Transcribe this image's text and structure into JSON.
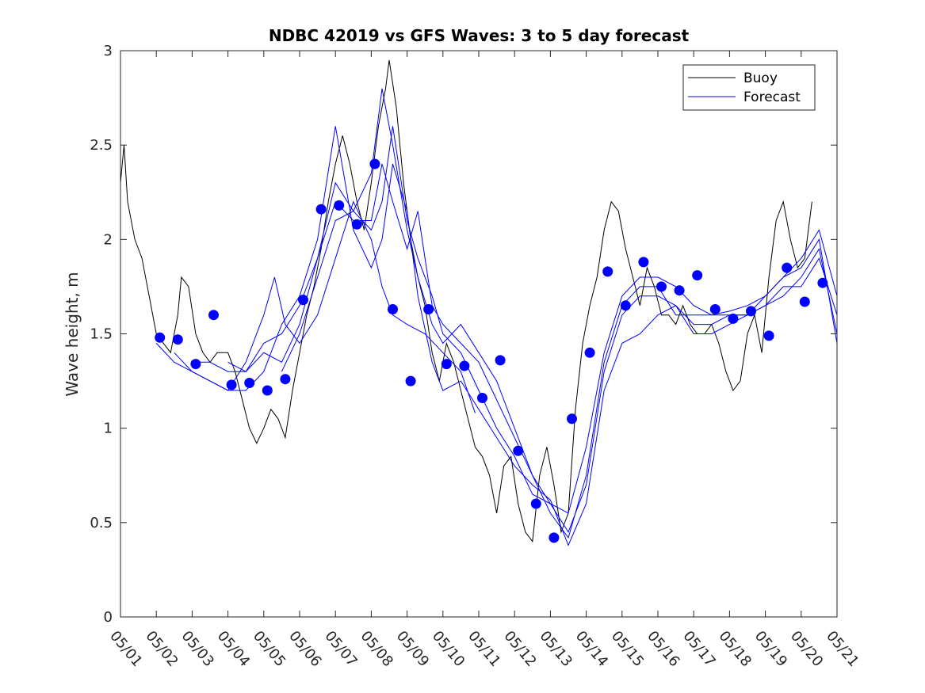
{
  "chart_data": {
    "type": "line",
    "title": "NDBC 42019 vs GFS Waves: 3 to 5 day forecast",
    "xlabel": "",
    "ylabel": "Wave height, m",
    "xlim": [
      0,
      20
    ],
    "ylim": [
      0,
      3
    ],
    "x_ticks": [
      "05/01",
      "05/02",
      "05/03",
      "05/04",
      "05/05",
      "05/06",
      "05/07",
      "05/08",
      "05/09",
      "05/10",
      "05/11",
      "05/12",
      "05/13",
      "05/14",
      "05/15",
      "05/16",
      "05/17",
      "05/18",
      "05/19",
      "05/20",
      "05/21"
    ],
    "y_ticks": [
      "0",
      "0.5",
      "1",
      "1.5",
      "2",
      "2.5",
      "3"
    ],
    "grid": false,
    "legend_position": "top-right",
    "colors": {
      "buoy": "#000000",
      "forecast": "#0000ff"
    },
    "legend": [
      {
        "name": "Buoy",
        "color": "#000000"
      },
      {
        "name": "Forecast",
        "color": "#0000ff"
      }
    ],
    "buoy": {
      "name": "Buoy",
      "points": [
        [
          0.0,
          2.3
        ],
        [
          0.1,
          2.5
        ],
        [
          0.2,
          2.2
        ],
        [
          0.4,
          2.0
        ],
        [
          0.6,
          1.9
        ],
        [
          0.8,
          1.7
        ],
        [
          1.0,
          1.5
        ],
        [
          1.2,
          1.45
        ],
        [
          1.4,
          1.4
        ],
        [
          1.6,
          1.6
        ],
        [
          1.7,
          1.8
        ],
        [
          1.9,
          1.75
        ],
        [
          2.1,
          1.5
        ],
        [
          2.3,
          1.4
        ],
        [
          2.5,
          1.35
        ],
        [
          2.7,
          1.4
        ],
        [
          2.9,
          1.4
        ],
        [
          3.0,
          1.4
        ],
        [
          3.2,
          1.3
        ],
        [
          3.4,
          1.15
        ],
        [
          3.6,
          1.0
        ],
        [
          3.8,
          0.92
        ],
        [
          4.0,
          1.0
        ],
        [
          4.2,
          1.1
        ],
        [
          4.4,
          1.05
        ],
        [
          4.6,
          0.95
        ],
        [
          4.8,
          1.2
        ],
        [
          5.0,
          1.4
        ],
        [
          5.2,
          1.6
        ],
        [
          5.4,
          1.75
        ],
        [
          5.6,
          1.95
        ],
        [
          5.8,
          2.2
        ],
        [
          6.0,
          2.4
        ],
        [
          6.2,
          2.55
        ],
        [
          6.4,
          2.4
        ],
        [
          6.6,
          2.2
        ],
        [
          6.8,
          2.05
        ],
        [
          7.0,
          2.3
        ],
        [
          7.2,
          2.6
        ],
        [
          7.4,
          2.8
        ],
        [
          7.5,
          2.95
        ],
        [
          7.7,
          2.7
        ],
        [
          7.9,
          2.3
        ],
        [
          8.1,
          2.0
        ],
        [
          8.3,
          1.8
        ],
        [
          8.5,
          1.65
        ],
        [
          8.7,
          1.4
        ],
        [
          8.9,
          1.25
        ],
        [
          9.1,
          1.45
        ],
        [
          9.3,
          1.35
        ],
        [
          9.5,
          1.2
        ],
        [
          9.7,
          1.05
        ],
        [
          9.9,
          0.9
        ],
        [
          10.1,
          0.85
        ],
        [
          10.3,
          0.75
        ],
        [
          10.5,
          0.55
        ],
        [
          10.7,
          0.8
        ],
        [
          10.9,
          0.85
        ],
        [
          11.1,
          0.6
        ],
        [
          11.3,
          0.45
        ],
        [
          11.5,
          0.4
        ],
        [
          11.7,
          0.75
        ],
        [
          11.9,
          0.9
        ],
        [
          12.1,
          0.7
        ],
        [
          12.3,
          0.45
        ],
        [
          12.5,
          0.55
        ],
        [
          12.7,
          1.1
        ],
        [
          12.9,
          1.45
        ],
        [
          13.1,
          1.65
        ],
        [
          13.3,
          1.8
        ],
        [
          13.5,
          2.05
        ],
        [
          13.7,
          2.2
        ],
        [
          13.9,
          2.15
        ],
        [
          14.1,
          1.95
        ],
        [
          14.3,
          1.8
        ],
        [
          14.5,
          1.65
        ],
        [
          14.7,
          1.85
        ],
        [
          14.9,
          1.75
        ],
        [
          15.1,
          1.6
        ],
        [
          15.3,
          1.6
        ],
        [
          15.5,
          1.55
        ],
        [
          15.7,
          1.65
        ],
        [
          15.9,
          1.55
        ],
        [
          16.1,
          1.5
        ],
        [
          16.3,
          1.5
        ],
        [
          16.5,
          1.55
        ],
        [
          16.7,
          1.45
        ],
        [
          16.9,
          1.3
        ],
        [
          17.1,
          1.2
        ],
        [
          17.3,
          1.25
        ],
        [
          17.5,
          1.5
        ],
        [
          17.7,
          1.6
        ],
        [
          17.9,
          1.4
        ],
        [
          18.1,
          1.8
        ],
        [
          18.3,
          2.1
        ],
        [
          18.5,
          2.2
        ],
        [
          18.7,
          2.0
        ],
        [
          18.9,
          1.85
        ],
        [
          19.1,
          1.9
        ],
        [
          19.3,
          2.2
        ]
      ]
    },
    "forecast_lines": [
      {
        "name": "Forecast",
        "points": [
          [
            1.0,
            1.45
          ],
          [
            1.5,
            1.35
          ],
          [
            2.0,
            1.3
          ],
          [
            2.5,
            1.25
          ],
          [
            3.0,
            1.2
          ],
          [
            3.5,
            1.35
          ],
          [
            4.0,
            1.6
          ],
          [
            4.3,
            1.8
          ],
          [
            4.6,
            1.55
          ],
          [
            5.0,
            1.45
          ],
          [
            5.5,
            1.6
          ],
          [
            6.0,
            1.9
          ],
          [
            6.5,
            2.2
          ],
          [
            7.0,
            2.0
          ],
          [
            7.3,
            1.75
          ],
          [
            7.6,
            1.6
          ],
          [
            8.0,
            1.55
          ],
          [
            8.5,
            1.5
          ],
          [
            9.0,
            1.4
          ],
          [
            9.5,
            1.3
          ],
          [
            9.9,
            1.08
          ]
        ]
      },
      {
        "name": "Forecast",
        "points": [
          [
            1.5,
            1.4
          ],
          [
            2.0,
            1.3
          ],
          [
            2.5,
            1.25
          ],
          [
            3.0,
            1.2
          ],
          [
            3.5,
            1.2
          ],
          [
            4.0,
            1.3
          ],
          [
            4.5,
            1.55
          ],
          [
            5.0,
            1.7
          ],
          [
            5.5,
            2.0
          ],
          [
            6.0,
            2.6
          ],
          [
            6.5,
            2.05
          ],
          [
            7.0,
            1.85
          ],
          [
            7.3,
            2.0
          ],
          [
            7.6,
            2.4
          ],
          [
            8.0,
            2.15
          ],
          [
            8.3,
            1.7
          ],
          [
            8.7,
            1.35
          ],
          [
            9.0,
            1.2
          ],
          [
            9.5,
            1.25
          ],
          [
            10.0,
            1.1
          ],
          [
            10.5,
            0.95
          ],
          [
            11.0,
            0.8
          ],
          [
            11.5,
            0.7
          ],
          [
            12.0,
            0.62
          ],
          [
            12.5,
            0.38
          ],
          [
            13.0,
            0.6
          ],
          [
            13.5,
            1.2
          ],
          [
            14.0,
            1.45
          ],
          [
            14.5,
            1.5
          ],
          [
            15.0,
            1.6
          ],
          [
            15.5,
            1.65
          ],
          [
            16.0,
            1.5
          ],
          [
            16.5,
            1.5
          ],
          [
            17.0,
            1.55
          ],
          [
            17.5,
            1.6
          ],
          [
            18.0,
            1.65
          ],
          [
            18.5,
            1.75
          ],
          [
            19.0,
            1.75
          ],
          [
            19.5,
            1.9
          ],
          [
            20.0,
            1.6
          ]
        ]
      },
      {
        "name": "Forecast",
        "points": [
          [
            2.0,
            1.35
          ],
          [
            2.5,
            1.35
          ],
          [
            3.0,
            1.3
          ],
          [
            3.5,
            1.3
          ],
          [
            4.0,
            1.4
          ],
          [
            4.5,
            1.35
          ],
          [
            5.0,
            1.55
          ],
          [
            5.5,
            1.9
          ],
          [
            6.0,
            2.3
          ],
          [
            6.5,
            2.15
          ],
          [
            7.0,
            2.05
          ],
          [
            7.3,
            2.2
          ],
          [
            7.6,
            2.6
          ],
          [
            8.0,
            2.1
          ],
          [
            8.3,
            1.9
          ],
          [
            8.7,
            1.7
          ],
          [
            9.0,
            1.5
          ],
          [
            9.5,
            1.4
          ],
          [
            10.0,
            1.2
          ],
          [
            10.5,
            1.0
          ],
          [
            11.0,
            0.85
          ],
          [
            11.5,
            0.65
          ],
          [
            12.0,
            0.6
          ],
          [
            12.5,
            0.45
          ],
          [
            13.0,
            0.7
          ],
          [
            13.5,
            1.3
          ],
          [
            14.0,
            1.6
          ],
          [
            14.5,
            1.7
          ],
          [
            15.0,
            1.7
          ],
          [
            15.5,
            1.65
          ],
          [
            16.0,
            1.55
          ],
          [
            16.5,
            1.55
          ],
          [
            17.0,
            1.6
          ],
          [
            17.5,
            1.6
          ],
          [
            18.0,
            1.65
          ],
          [
            18.5,
            1.7
          ],
          [
            19.0,
            1.8
          ],
          [
            19.5,
            1.95
          ],
          [
            20.0,
            1.5
          ]
        ]
      },
      {
        "name": "Forecast",
        "points": [
          [
            3.0,
            1.35
          ],
          [
            3.5,
            1.3
          ],
          [
            4.0,
            1.45
          ],
          [
            4.5,
            1.5
          ],
          [
            5.0,
            1.65
          ],
          [
            5.5,
            1.9
          ],
          [
            6.0,
            2.2
          ],
          [
            6.5,
            2.1
          ],
          [
            7.0,
            2.1
          ],
          [
            7.3,
            2.4
          ],
          [
            7.6,
            2.2
          ],
          [
            8.0,
            1.95
          ],
          [
            8.3,
            2.15
          ],
          [
            8.7,
            1.65
          ],
          [
            9.0,
            1.55
          ],
          [
            9.5,
            1.45
          ],
          [
            10.0,
            1.35
          ],
          [
            10.5,
            1.15
          ],
          [
            11.0,
            0.95
          ],
          [
            11.5,
            0.75
          ],
          [
            12.0,
            0.55
          ],
          [
            12.5,
            0.42
          ],
          [
            13.0,
            0.75
          ],
          [
            13.5,
            1.35
          ],
          [
            14.0,
            1.65
          ],
          [
            14.5,
            1.75
          ],
          [
            15.0,
            1.75
          ],
          [
            15.5,
            1.6
          ],
          [
            16.0,
            1.6
          ],
          [
            16.5,
            1.6
          ],
          [
            17.0,
            1.62
          ],
          [
            17.5,
            1.65
          ],
          [
            18.0,
            1.7
          ],
          [
            18.5,
            1.8
          ],
          [
            19.0,
            1.9
          ],
          [
            19.5,
            2.05
          ],
          [
            20.0,
            1.7
          ]
        ]
      },
      {
        "name": "Forecast",
        "points": [
          [
            4.5,
            1.3
          ],
          [
            5.0,
            1.5
          ],
          [
            5.5,
            1.8
          ],
          [
            6.0,
            2.1
          ],
          [
            6.5,
            2.15
          ],
          [
            7.0,
            2.35
          ],
          [
            7.3,
            2.8
          ],
          [
            7.6,
            2.5
          ],
          [
            8.0,
            2.05
          ],
          [
            8.3,
            1.8
          ],
          [
            8.7,
            1.55
          ],
          [
            9.0,
            1.45
          ],
          [
            9.5,
            1.55
          ],
          [
            10.0,
            1.4
          ],
          [
            10.5,
            1.25
          ],
          [
            11.0,
            1.0
          ],
          [
            11.5,
            0.75
          ],
          [
            12.0,
            0.6
          ],
          [
            12.5,
            0.55
          ],
          [
            13.0,
            0.9
          ],
          [
            13.5,
            1.4
          ],
          [
            14.0,
            1.7
          ],
          [
            14.5,
            1.8
          ],
          [
            15.0,
            1.8
          ],
          [
            15.5,
            1.75
          ],
          [
            16.0,
            1.65
          ],
          [
            16.5,
            1.6
          ],
          [
            17.0,
            1.6
          ],
          [
            17.5,
            1.6
          ],
          [
            18.0,
            1.7
          ],
          [
            18.5,
            1.8
          ],
          [
            19.0,
            1.85
          ],
          [
            19.5,
            2.0
          ],
          [
            20.0,
            1.45
          ]
        ]
      }
    ],
    "forecast_points": [
      [
        1.1,
        1.48
      ],
      [
        1.6,
        1.47
      ],
      [
        2.1,
        1.34
      ],
      [
        2.6,
        1.6
      ],
      [
        3.1,
        1.23
      ],
      [
        3.6,
        1.24
      ],
      [
        4.1,
        1.2
      ],
      [
        4.6,
        1.26
      ],
      [
        5.1,
        1.68
      ],
      [
        5.6,
        2.16
      ],
      [
        6.1,
        2.18
      ],
      [
        6.6,
        2.08
      ],
      [
        7.1,
        2.4
      ],
      [
        7.6,
        1.63
      ],
      [
        8.1,
        1.25
      ],
      [
        8.6,
        1.63
      ],
      [
        9.1,
        1.34
      ],
      [
        9.6,
        1.33
      ],
      [
        10.1,
        1.16
      ],
      [
        10.6,
        1.36
      ],
      [
        11.1,
        0.88
      ],
      [
        11.6,
        0.6
      ],
      [
        12.1,
        0.42
      ],
      [
        12.6,
        1.05
      ],
      [
        13.1,
        1.4
      ],
      [
        13.6,
        1.83
      ],
      [
        14.1,
        1.65
      ],
      [
        14.6,
        1.88
      ],
      [
        15.1,
        1.75
      ],
      [
        15.6,
        1.73
      ],
      [
        16.1,
        1.81
      ],
      [
        16.6,
        1.63
      ],
      [
        17.1,
        1.58
      ],
      [
        17.6,
        1.62
      ],
      [
        18.1,
        1.49
      ],
      [
        18.6,
        1.85
      ],
      [
        19.1,
        1.67
      ],
      [
        19.6,
        1.77
      ]
    ]
  }
}
